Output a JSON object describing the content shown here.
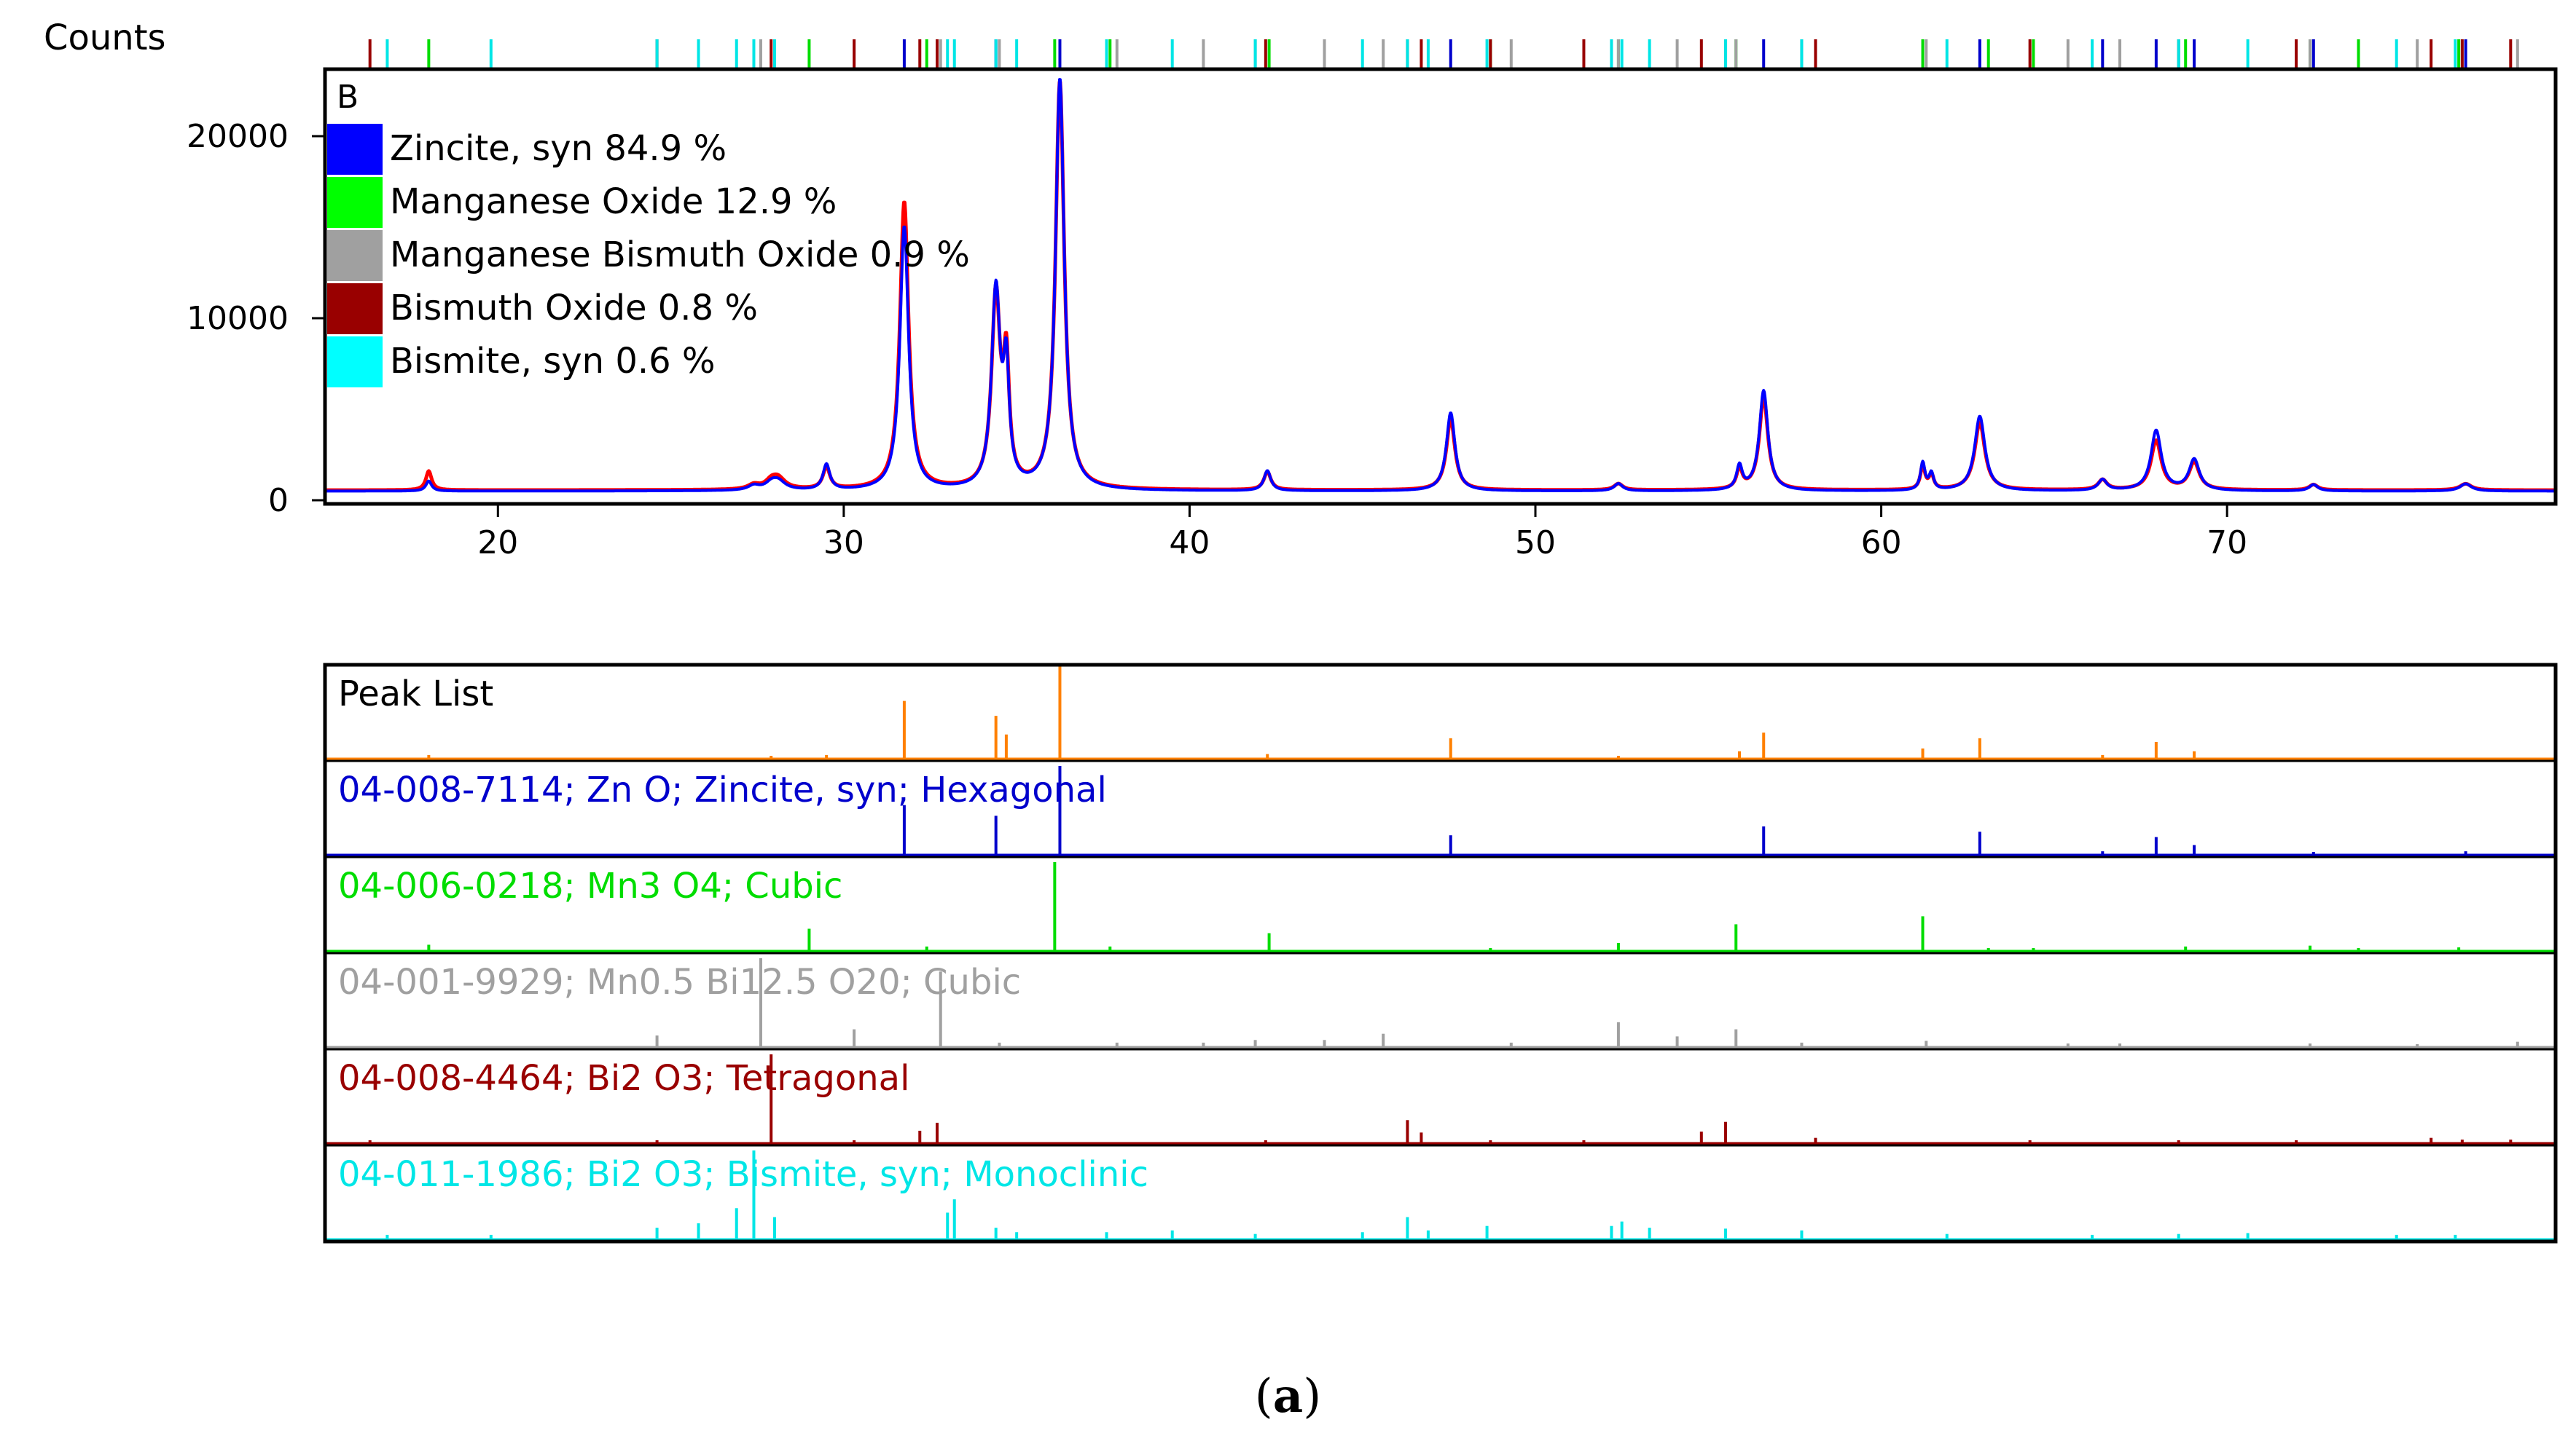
{
  "caption": {
    "open": "(",
    "letter": "a",
    "close": ")"
  },
  "chart_data": [
    {
      "type": "line",
      "panel_label": "B",
      "ylabel": "Counts",
      "xlim": [
        15,
        79.5
      ],
      "ylim": [
        0,
        23500
      ],
      "x_ticks": [
        20,
        30,
        40,
        50,
        60,
        70
      ],
      "y_ticks": [
        0,
        10000,
        20000
      ],
      "legend_position": "top-left",
      "legend": [
        {
          "label": "Zincite, syn 84.9 %",
          "color": "#0000ff"
        },
        {
          "label": "Manganese Oxide 12.9 %",
          "color": "#00ff00"
        },
        {
          "label": "Manganese Bismuth Oxide 0.9 %",
          "color": "#a0a0a0"
        },
        {
          "label": "Bismuth Oxide 0.8 %",
          "color": "#990000"
        },
        {
          "label": "Bismite, syn 0.6 %",
          "color": "#00ffff"
        }
      ],
      "series": [
        {
          "color": "#ff0000",
          "background": 550,
          "peaks": [
            [
              18.0,
              1050,
              0.1
            ],
            [
              27.4,
              250,
              0.2
            ],
            [
              27.9,
              350,
              0.2
            ],
            [
              28.1,
              600,
              0.25
            ],
            [
              29.5,
              1200,
              0.12
            ],
            [
              31.75,
              15800,
              0.15
            ],
            [
              34.4,
              10500,
              0.15
            ],
            [
              34.7,
              6300,
              0.1
            ],
            [
              36.25,
              22400,
              0.15
            ],
            [
              42.25,
              1000,
              0.12
            ],
            [
              47.55,
              3900,
              0.15
            ],
            [
              52.4,
              350,
              0.15
            ],
            [
              55.9,
              1100,
              0.1
            ],
            [
              56.6,
              5100,
              0.15
            ],
            [
              61.2,
              1300,
              0.08
            ],
            [
              61.45,
              800,
              0.08
            ],
            [
              62.85,
              3700,
              0.18
            ],
            [
              66.4,
              550,
              0.15
            ],
            [
              67.95,
              2700,
              0.18
            ],
            [
              69.05,
              1500,
              0.18
            ],
            [
              72.5,
              300,
              0.15
            ],
            [
              76.9,
              350,
              0.2
            ]
          ]
        },
        {
          "color": "#0000ff",
          "background": 500,
          "peaks": [
            [
              18.0,
              550,
              0.1
            ],
            [
              27.4,
              250,
              0.2
            ],
            [
              27.9,
              300,
              0.2
            ],
            [
              28.1,
              500,
              0.25
            ],
            [
              29.5,
              1400,
              0.12
            ],
            [
              31.75,
              14500,
              0.15
            ],
            [
              34.4,
              10800,
              0.15
            ],
            [
              34.7,
              6000,
              0.1
            ],
            [
              36.25,
              22600,
              0.15
            ],
            [
              42.25,
              1100,
              0.12
            ],
            [
              47.55,
              4300,
              0.15
            ],
            [
              52.4,
              400,
              0.15
            ],
            [
              55.9,
              1300,
              0.1
            ],
            [
              56.6,
              5500,
              0.15
            ],
            [
              61.2,
              1500,
              0.08
            ],
            [
              61.45,
              900,
              0.08
            ],
            [
              62.85,
              4100,
              0.18
            ],
            [
              66.4,
              600,
              0.15
            ],
            [
              67.95,
              3300,
              0.18
            ],
            [
              69.05,
              1700,
              0.18
            ],
            [
              72.5,
              350,
              0.15
            ],
            [
              76.9,
              400,
              0.2
            ]
          ]
        }
      ]
    },
    {
      "type": "stick",
      "xlim": [
        15,
        79.5
      ],
      "panels": [
        {
          "label": "Peak List",
          "label_color": "#000000",
          "color": "#ff8000",
          "sticks": [
            [
              18.0,
              0.04
            ],
            [
              27.9,
              0.03
            ],
            [
              29.5,
              0.04
            ],
            [
              31.75,
              0.62
            ],
            [
              34.4,
              0.46
            ],
            [
              34.7,
              0.26
            ],
            [
              36.25,
              1.0
            ],
            [
              42.25,
              0.05
            ],
            [
              47.55,
              0.22
            ],
            [
              52.4,
              0.03
            ],
            [
              55.9,
              0.08
            ],
            [
              56.6,
              0.28
            ],
            [
              61.2,
              0.11
            ],
            [
              62.85,
              0.22
            ],
            [
              66.4,
              0.04
            ],
            [
              67.95,
              0.18
            ],
            [
              69.05,
              0.08
            ]
          ]
        },
        {
          "label": "04-008-7114; Zn O; Zincite, syn; Hexagonal",
          "label_color": "#0000cc",
          "color": "#0000cc",
          "sticks": [
            [
              31.75,
              0.56
            ],
            [
              34.4,
              0.44
            ],
            [
              36.25,
              1.0
            ],
            [
              47.55,
              0.22
            ],
            [
              56.6,
              0.32
            ],
            [
              62.85,
              0.26
            ],
            [
              66.4,
              0.04
            ],
            [
              67.95,
              0.2
            ],
            [
              69.05,
              0.11
            ],
            [
              72.5,
              0.03
            ],
            [
              76.9,
              0.04
            ]
          ]
        },
        {
          "label": "04-006-0218; Mn3 O4; Cubic",
          "label_color": "#00dd00",
          "color": "#00dd00",
          "sticks": [
            [
              18.0,
              0.07
            ],
            [
              29.0,
              0.25
            ],
            [
              32.4,
              0.05
            ],
            [
              36.1,
              1.0
            ],
            [
              37.7,
              0.05
            ],
            [
              42.3,
              0.2
            ],
            [
              48.7,
              0.03
            ],
            [
              52.4,
              0.09
            ],
            [
              55.8,
              0.3
            ],
            [
              61.2,
              0.39
            ],
            [
              63.1,
              0.03
            ],
            [
              64.4,
              0.03
            ],
            [
              68.8,
              0.05
            ],
            [
              72.4,
              0.06
            ],
            [
              73.8,
              0.03
            ],
            [
              76.7,
              0.04
            ]
          ]
        },
        {
          "label": "04-001-9929; Mn0.5 Bi12.5 O20; Cubic",
          "label_color": "#a0a0a0",
          "color": "#a0a0a0",
          "sticks": [
            [
              24.6,
              0.13
            ],
            [
              27.6,
              1.0
            ],
            [
              30.3,
              0.2
            ],
            [
              32.8,
              0.85
            ],
            [
              34.5,
              0.05
            ],
            [
              37.9,
              0.05
            ],
            [
              40.4,
              0.05
            ],
            [
              41.9,
              0.08
            ],
            [
              43.9,
              0.08
            ],
            [
              45.6,
              0.15
            ],
            [
              49.3,
              0.05
            ],
            [
              52.4,
              0.28
            ],
            [
              54.1,
              0.12
            ],
            [
              55.8,
              0.2
            ],
            [
              57.7,
              0.05
            ],
            [
              61.3,
              0.07
            ],
            [
              65.4,
              0.04
            ],
            [
              66.9,
              0.04
            ],
            [
              72.4,
              0.04
            ],
            [
              75.5,
              0.03
            ],
            [
              78.4,
              0.06
            ]
          ]
        },
        {
          "label": "04-008-4464; Bi2 O3; Tetragonal",
          "label_color": "#990000",
          "color": "#990000",
          "sticks": [
            [
              16.3,
              0.03
            ],
            [
              24.6,
              0.03
            ],
            [
              27.9,
              1.0
            ],
            [
              30.3,
              0.03
            ],
            [
              32.2,
              0.14
            ],
            [
              32.7,
              0.23
            ],
            [
              42.2,
              0.03
            ],
            [
              46.3,
              0.26
            ],
            [
              46.7,
              0.12
            ],
            [
              48.7,
              0.03
            ],
            [
              51.4,
              0.03
            ],
            [
              54.8,
              0.13
            ],
            [
              55.5,
              0.24
            ],
            [
              58.1,
              0.06
            ],
            [
              64.3,
              0.03
            ],
            [
              68.6,
              0.03
            ],
            [
              72.0,
              0.03
            ],
            [
              75.9,
              0.06
            ],
            [
              76.8,
              0.04
            ],
            [
              78.2,
              0.04
            ]
          ]
        },
        {
          "label": "04-011-1986; Bi2 O3; Bismite, syn; Monoclinic",
          "label_color": "#00e6e6",
          "color": "#00e6e6",
          "sticks": [
            [
              16.8,
              0.05
            ],
            [
              19.8,
              0.05
            ],
            [
              24.6,
              0.13
            ],
            [
              25.8,
              0.18
            ],
            [
              26.9,
              0.35
            ],
            [
              27.4,
              1.0
            ],
            [
              28.0,
              0.25
            ],
            [
              33.0,
              0.3
            ],
            [
              33.2,
              0.45
            ],
            [
              34.4,
              0.13
            ],
            [
              35.0,
              0.08
            ],
            [
              37.6,
              0.08
            ],
            [
              39.5,
              0.1
            ],
            [
              41.9,
              0.06
            ],
            [
              45.0,
              0.08
            ],
            [
              46.3,
              0.25
            ],
            [
              46.9,
              0.1
            ],
            [
              48.6,
              0.15
            ],
            [
              52.2,
              0.15
            ],
            [
              52.5,
              0.2
            ],
            [
              53.3,
              0.13
            ],
            [
              55.5,
              0.12
            ],
            [
              57.7,
              0.1
            ],
            [
              61.9,
              0.06
            ],
            [
              66.1,
              0.05
            ],
            [
              68.6,
              0.06
            ],
            [
              70.6,
              0.07
            ],
            [
              74.9,
              0.05
            ],
            [
              76.6,
              0.05
            ]
          ]
        }
      ]
    }
  ]
}
